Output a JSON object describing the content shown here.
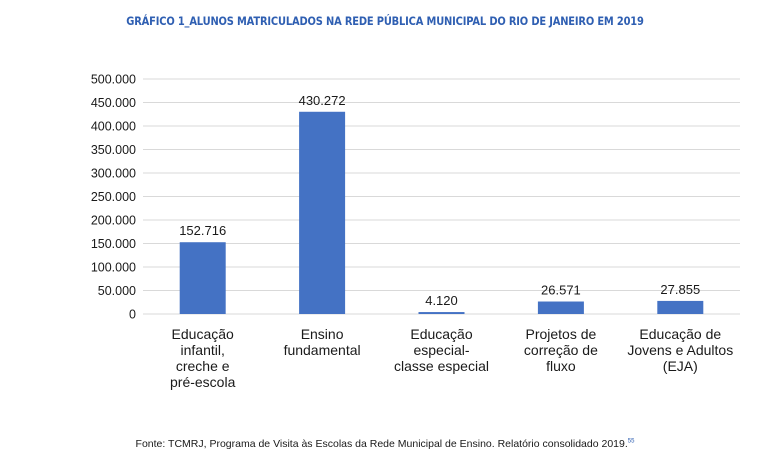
{
  "chart_data": {
    "type": "bar",
    "title": "GRÁFICO 1_ALUNOS MATRICULADOS NA REDE PÚBLICA MUNICIPAL DO RIO DE JANEIRO EM 2019",
    "categories": [
      [
        "Educação",
        "infantil,",
        "creche e",
        "pré-escola"
      ],
      [
        "Ensino",
        "fundamental"
      ],
      [
        "Educação",
        "especial-",
        "classe especial"
      ],
      [
        "Projetos de",
        "correção de",
        "fluxo"
      ],
      [
        "Educação de",
        "Jovens e Adultos",
        "(EJA)"
      ]
    ],
    "values": [
      152716,
      430272,
      4120,
      26571,
      27855
    ],
    "value_labels": [
      "152.716",
      "430.272",
      "4.120",
      "26.571",
      "27.855"
    ],
    "ylim": [
      0,
      500000
    ],
    "yticks": [
      0,
      50000,
      100000,
      150000,
      200000,
      250000,
      300000,
      350000,
      400000,
      450000,
      500000
    ],
    "ytick_labels": [
      "0",
      "50.000",
      "100.000",
      "150.000",
      "200.000",
      "250.000",
      "300.000",
      "350.000",
      "400.000",
      "450.000",
      "500.000"
    ],
    "grid": true,
    "bar_color": "#4472c4",
    "grid_color": "#d9d9d9",
    "title_color": "#2f5fb2"
  },
  "footer": {
    "source": "Fonte: TCMRJ, Programa de Visita às Escolas da Rede Municipal de Ensino. Relatório consolidado 2019.",
    "footnote_ref": "55"
  }
}
